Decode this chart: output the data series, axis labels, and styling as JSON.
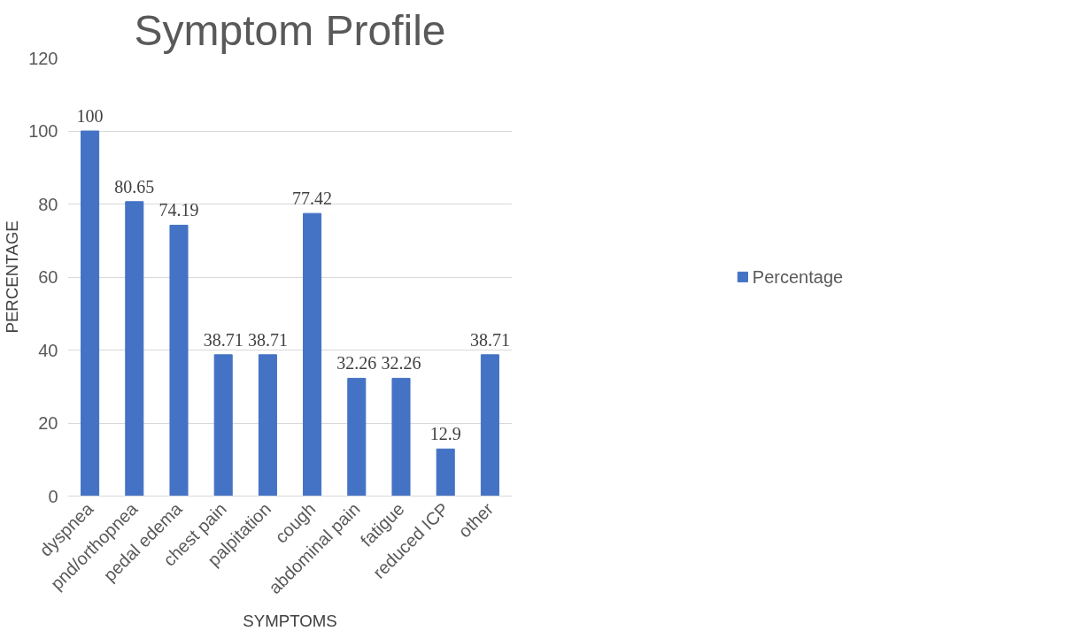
{
  "chart_data": {
    "type": "bar",
    "title": "Symptom Profile",
    "xlabel": "SYMPTOMS",
    "ylabel": "PERCENTAGE",
    "categories": [
      "dyspnea",
      "pnd/orthopnea",
      "pedal edema",
      "chest pain",
      "palpitation",
      "cough",
      "abdominal pain",
      "fatigue",
      "reduced ICP",
      "other"
    ],
    "series": [
      {
        "name": "Percentage",
        "color": "#4472c4",
        "values": [
          100,
          80.65,
          74.19,
          38.71,
          38.71,
          77.42,
          32.26,
          32.26,
          12.9,
          38.71
        ]
      }
    ],
    "ylim": [
      0,
      120
    ],
    "yticks": [
      0,
      20,
      40,
      60,
      80,
      100,
      120
    ],
    "grid": "y",
    "legend": "right",
    "data_labels": true
  }
}
